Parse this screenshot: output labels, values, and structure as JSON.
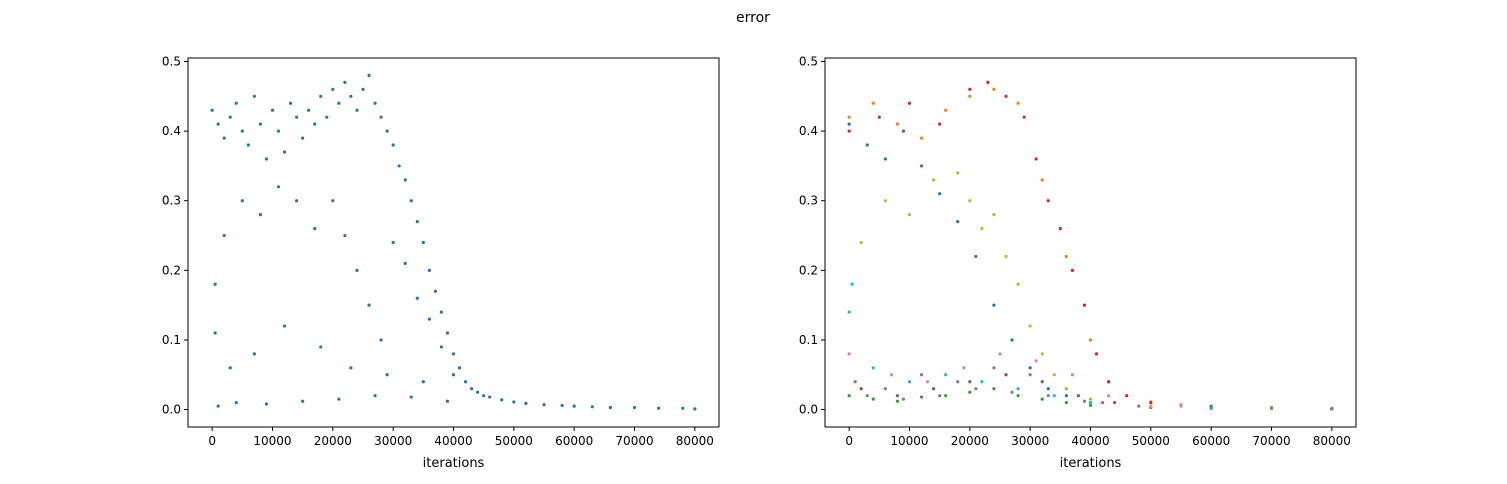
{
  "figure": {
    "suptitle": "error"
  },
  "chart_data": [
    {
      "type": "scatter",
      "panel": "left",
      "title": "",
      "xlabel": "iterations",
      "ylabel": "",
      "xlim": [
        -4000,
        84000
      ],
      "ylim": [
        -0.025,
        0.505
      ],
      "xticks": [
        0,
        10000,
        20000,
        30000,
        40000,
        50000,
        60000,
        70000,
        80000
      ],
      "xtick_labels": [
        "0",
        "10000",
        "20000",
        "30000",
        "40000",
        "50000",
        "60000",
        "70000",
        "80000"
      ],
      "yticks": [
        0.0,
        0.1,
        0.2,
        0.3,
        0.4,
        0.5
      ],
      "ytick_labels": [
        "0.0",
        "0.1",
        "0.2",
        "0.3",
        "0.4",
        "0.5"
      ],
      "grid": false,
      "legend": "none",
      "series": [
        {
          "color": "#1f77b4",
          "points": [
            [
              0,
              0.43
            ],
            [
              1000,
              0.41
            ],
            [
              2000,
              0.39
            ],
            [
              3000,
              0.42
            ],
            [
              4000,
              0.44
            ],
            [
              5000,
              0.4
            ],
            [
              6000,
              0.38
            ],
            [
              7000,
              0.45
            ],
            [
              8000,
              0.41
            ],
            [
              9000,
              0.36
            ],
            [
              10000,
              0.43
            ],
            [
              11000,
              0.4
            ],
            [
              12000,
              0.37
            ],
            [
              13000,
              0.44
            ],
            [
              14000,
              0.42
            ],
            [
              15000,
              0.39
            ],
            [
              16000,
              0.43
            ],
            [
              17000,
              0.41
            ],
            [
              18000,
              0.45
            ],
            [
              19000,
              0.42
            ],
            [
              20000,
              0.46
            ],
            [
              21000,
              0.44
            ],
            [
              22000,
              0.47
            ],
            [
              23000,
              0.45
            ],
            [
              24000,
              0.43
            ],
            [
              25000,
              0.46
            ],
            [
              26000,
              0.48
            ],
            [
              27000,
              0.44
            ],
            [
              28000,
              0.42
            ],
            [
              29000,
              0.4
            ],
            [
              30000,
              0.38
            ],
            [
              31000,
              0.35
            ],
            [
              32000,
              0.33
            ],
            [
              33000,
              0.3
            ],
            [
              34000,
              0.27
            ],
            [
              35000,
              0.24
            ],
            [
              36000,
              0.2
            ],
            [
              37000,
              0.17
            ],
            [
              38000,
              0.14
            ],
            [
              39000,
              0.11
            ],
            [
              40000,
              0.08
            ],
            [
              41000,
              0.06
            ],
            [
              42000,
              0.04
            ],
            [
              43000,
              0.03
            ],
            [
              44000,
              0.025
            ],
            [
              45000,
              0.02
            ],
            [
              46000,
              0.018
            ],
            [
              48000,
              0.014
            ],
            [
              50000,
              0.011
            ],
            [
              52000,
              0.009
            ],
            [
              55000,
              0.007
            ],
            [
              58000,
              0.006
            ],
            [
              60000,
              0.005
            ],
            [
              63000,
              0.004
            ],
            [
              66000,
              0.003
            ],
            [
              70000,
              0.003
            ],
            [
              74000,
              0.002
            ],
            [
              78000,
              0.002
            ],
            [
              80000,
              0.001
            ],
            [
              2000,
              0.25
            ],
            [
              5000,
              0.3
            ],
            [
              8000,
              0.28
            ],
            [
              11000,
              0.32
            ],
            [
              14000,
              0.3
            ],
            [
              17000,
              0.26
            ],
            [
              20000,
              0.3
            ],
            [
              22000,
              0.25
            ],
            [
              24000,
              0.2
            ],
            [
              26000,
              0.15
            ],
            [
              28000,
              0.1
            ],
            [
              30000,
              0.24
            ],
            [
              32000,
              0.21
            ],
            [
              34000,
              0.16
            ],
            [
              36000,
              0.13
            ],
            [
              38000,
              0.09
            ],
            [
              40000,
              0.05
            ],
            [
              500,
              0.18
            ],
            [
              500,
              0.11
            ],
            [
              3000,
              0.06
            ],
            [
              7000,
              0.08
            ],
            [
              12000,
              0.12
            ],
            [
              18000,
              0.09
            ],
            [
              23000,
              0.06
            ],
            [
              29000,
              0.05
            ],
            [
              35000,
              0.04
            ],
            [
              1000,
              0.005
            ],
            [
              4000,
              0.01
            ],
            [
              9000,
              0.008
            ],
            [
              15000,
              0.012
            ],
            [
              21000,
              0.015
            ],
            [
              27000,
              0.02
            ],
            [
              33000,
              0.018
            ],
            [
              39000,
              0.012
            ]
          ]
        }
      ]
    },
    {
      "type": "scatter",
      "panel": "right",
      "title": "",
      "xlabel": "iterations",
      "ylabel": "",
      "xlim": [
        -4000,
        84000
      ],
      "ylim": [
        -0.025,
        0.505
      ],
      "xticks": [
        0,
        10000,
        20000,
        30000,
        40000,
        50000,
        60000,
        70000,
        80000
      ],
      "xtick_labels": [
        "0",
        "10000",
        "20000",
        "30000",
        "40000",
        "50000",
        "60000",
        "70000",
        "80000"
      ],
      "yticks": [
        0.0,
        0.1,
        0.2,
        0.3,
        0.4,
        0.5
      ],
      "ytick_labels": [
        "0.0",
        "0.1",
        "0.2",
        "0.3",
        "0.4",
        "0.5"
      ],
      "grid": false,
      "legend": "none",
      "series": [
        {
          "color": "#1f77b4",
          "points": [
            [
              0,
              0.41
            ],
            [
              3000,
              0.38
            ],
            [
              6000,
              0.36
            ],
            [
              9000,
              0.4
            ],
            [
              12000,
              0.35
            ],
            [
              15000,
              0.31
            ],
            [
              18000,
              0.27
            ],
            [
              21000,
              0.22
            ],
            [
              24000,
              0.15
            ],
            [
              27000,
              0.1
            ],
            [
              30000,
              0.06
            ],
            [
              33000,
              0.03
            ],
            [
              36000,
              0.02
            ],
            [
              40000,
              0.01
            ],
            [
              50000,
              0.004
            ],
            [
              60000,
              0.002
            ],
            [
              80000,
              0.001
            ]
          ]
        },
        {
          "color": "#ff7f0e",
          "points": [
            [
              0,
              0.42
            ],
            [
              4000,
              0.44
            ],
            [
              8000,
              0.41
            ],
            [
              12000,
              0.39
            ],
            [
              16000,
              0.43
            ],
            [
              20000,
              0.45
            ],
            [
              24000,
              0.46
            ],
            [
              28000,
              0.44
            ],
            [
              32000,
              0.33
            ],
            [
              36000,
              0.22
            ],
            [
              40000,
              0.1
            ],
            [
              43000,
              0.04
            ],
            [
              46000,
              0.02
            ],
            [
              50000,
              0.011
            ],
            [
              55000,
              0.007
            ],
            [
              60000,
              0.005
            ],
            [
              70000,
              0.003
            ],
            [
              80000,
              0.002
            ]
          ]
        },
        {
          "color": "#2ca02c",
          "points": [
            [
              0,
              0.02
            ],
            [
              4000,
              0.015
            ],
            [
              8000,
              0.012
            ],
            [
              12000,
              0.018
            ],
            [
              16000,
              0.02
            ],
            [
              20000,
              0.025
            ],
            [
              24000,
              0.03
            ],
            [
              28000,
              0.02
            ],
            [
              32000,
              0.015
            ],
            [
              36000,
              0.01
            ],
            [
              40000,
              0.006
            ],
            [
              50000,
              0.003
            ],
            [
              60000,
              0.002
            ],
            [
              80000,
              0.001
            ]
          ]
        },
        {
          "color": "#d62728",
          "points": [
            [
              0,
              0.4
            ],
            [
              5000,
              0.42
            ],
            [
              10000,
              0.44
            ],
            [
              15000,
              0.41
            ],
            [
              20000,
              0.46
            ],
            [
              23000,
              0.47
            ],
            [
              26000,
              0.45
            ],
            [
              29000,
              0.42
            ],
            [
              31000,
              0.36
            ],
            [
              33000,
              0.3
            ],
            [
              35000,
              0.26
            ],
            [
              37000,
              0.2
            ],
            [
              39000,
              0.15
            ],
            [
              41000,
              0.08
            ],
            [
              43000,
              0.04
            ],
            [
              46000,
              0.02
            ],
            [
              50000,
              0.01
            ],
            [
              60000,
              0.004
            ],
            [
              70000,
              0.002
            ],
            [
              80000,
              0.001
            ]
          ]
        },
        {
          "color": "#9467bd",
          "points": [
            [
              1000,
              0.04
            ],
            [
              6000,
              0.03
            ],
            [
              12000,
              0.05
            ],
            [
              18000,
              0.04
            ],
            [
              24000,
              0.06
            ],
            [
              30000,
              0.05
            ],
            [
              36000,
              0.03
            ],
            [
              42000,
              0.01
            ],
            [
              50000,
              0.004
            ],
            [
              80000,
              0.001
            ]
          ]
        },
        {
          "color": "#8c564b",
          "points": [
            [
              2000,
              0.03
            ],
            [
              8000,
              0.02
            ],
            [
              14000,
              0.03
            ],
            [
              20000,
              0.04
            ],
            [
              26000,
              0.05
            ],
            [
              32000,
              0.04
            ],
            [
              38000,
              0.02
            ],
            [
              44000,
              0.01
            ],
            [
              60000,
              0.003
            ]
          ]
        },
        {
          "color": "#e377c2",
          "points": [
            [
              0,
              0.08
            ],
            [
              7000,
              0.05
            ],
            [
              13000,
              0.04
            ],
            [
              19000,
              0.06
            ],
            [
              25000,
              0.08
            ],
            [
              31000,
              0.07
            ],
            [
              37000,
              0.05
            ],
            [
              43000,
              0.02
            ],
            [
              55000,
              0.005
            ]
          ]
        },
        {
          "color": "#7f7f7f",
          "points": [
            [
              3000,
              0.02
            ],
            [
              9000,
              0.015
            ],
            [
              15000,
              0.02
            ],
            [
              21000,
              0.03
            ],
            [
              27000,
              0.025
            ],
            [
              33000,
              0.02
            ],
            [
              39000,
              0.012
            ],
            [
              48000,
              0.005
            ],
            [
              70000,
              0.002
            ]
          ]
        },
        {
          "color": "#bcbd22",
          "points": [
            [
              2000,
              0.24
            ],
            [
              6000,
              0.3
            ],
            [
              10000,
              0.28
            ],
            [
              14000,
              0.33
            ],
            [
              18000,
              0.34
            ],
            [
              20000,
              0.3
            ],
            [
              22000,
              0.26
            ],
            [
              24000,
              0.28
            ],
            [
              26000,
              0.22
            ],
            [
              28000,
              0.18
            ],
            [
              30000,
              0.12
            ],
            [
              32000,
              0.08
            ],
            [
              34000,
              0.05
            ],
            [
              36000,
              0.03
            ],
            [
              40000,
              0.015
            ],
            [
              50000,
              0.005
            ]
          ]
        },
        {
          "color": "#17becf",
          "points": [
            [
              0,
              0.14
            ],
            [
              500,
              0.18
            ],
            [
              4000,
              0.06
            ],
            [
              10000,
              0.04
            ],
            [
              16000,
              0.05
            ],
            [
              22000,
              0.04
            ],
            [
              28000,
              0.03
            ],
            [
              34000,
              0.02
            ],
            [
              40000,
              0.01
            ],
            [
              60000,
              0.002
            ]
          ]
        }
      ]
    }
  ]
}
